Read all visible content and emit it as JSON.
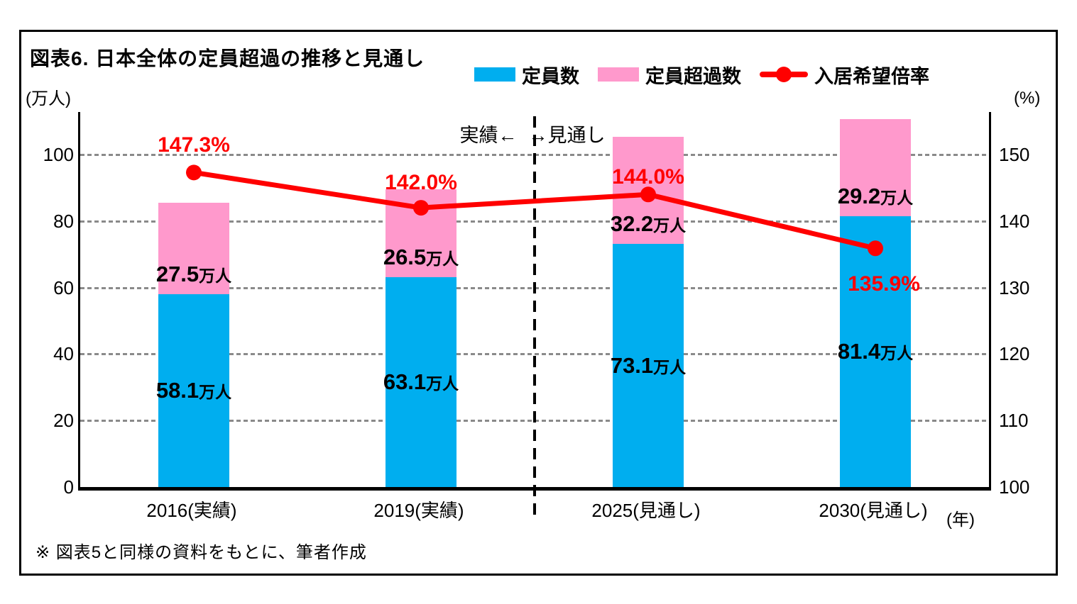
{
  "figure": {
    "title": "図表6. 日本全体の定員超過の推移と見通し",
    "footnote": "※ 図表5と同様の資料をもとに、筆者作成"
  },
  "legend": {
    "items": [
      {
        "label": "定員数",
        "marker": "box",
        "color": "#00AEEF"
      },
      {
        "label": "定員超過数",
        "marker": "box",
        "color": "#FF99CC"
      },
      {
        "label": "入居希望倍率",
        "marker": "line-dot",
        "color": "#FF0000"
      }
    ]
  },
  "axes": {
    "left_unit": "(万人)",
    "right_unit": "(%)",
    "x_unit": "(年)",
    "left_ticks": [
      0,
      20,
      40,
      60,
      80,
      100
    ],
    "right_ticks": [
      100,
      110,
      120,
      130,
      140,
      150
    ],
    "left_range": [
      0,
      112.8
    ],
    "right_range": [
      100,
      156.4
    ],
    "grid_color": "#8a8a8a",
    "grid_style": "dashed"
  },
  "divider": {
    "label_left": "実績←",
    "label_right": "→見通し",
    "position": "between 2019(実績) and 2025(見通し)",
    "style": "black dashed vertical line"
  },
  "chart_data": {
    "type": "bar",
    "subtype": "stacked-bars-with-right-axis-line",
    "title": "図表6. 日本全体の定員超過の推移と見通し",
    "categories": [
      "2016(実績)",
      "2019(実績)",
      "2025(見通し)",
      "2030(見通し)"
    ],
    "xlabel": "(年)",
    "ylabel_left": "(万人)",
    "ylabel_right": "(%)",
    "ylim_left": [
      0,
      112.8
    ],
    "ylim_right": [
      100,
      156.4
    ],
    "legend_position": "top",
    "grid": "horizontal-dashed",
    "series": [
      {
        "name": "定員数",
        "type": "bar",
        "stack": true,
        "axis": "left",
        "color": "#00AEEF",
        "values": [
          58.1,
          63.1,
          73.1,
          81.4
        ],
        "labels": [
          {
            "num": "58.1",
            "unit": "万人"
          },
          {
            "num": "63.1",
            "unit": "万人"
          },
          {
            "num": "73.1",
            "unit": "万人"
          },
          {
            "num": "81.4",
            "unit": "万人"
          }
        ]
      },
      {
        "name": "定員超過数",
        "type": "bar",
        "stack": true,
        "axis": "left",
        "color": "#FF99CC",
        "values": [
          27.5,
          26.5,
          32.2,
          29.2
        ],
        "labels": [
          {
            "num": "27.5",
            "unit": "万人"
          },
          {
            "num": "26.5",
            "unit": "万人"
          },
          {
            "num": "32.2",
            "unit": "万人"
          },
          {
            "num": "29.2",
            "unit": "万人"
          }
        ]
      },
      {
        "name": "入居希望倍率",
        "type": "line",
        "axis": "right",
        "color": "#FF0000",
        "values": [
          147.3,
          142.0,
          144.0,
          135.9
        ],
        "labels": [
          "147.3%",
          "142.0%",
          "144.0%",
          "135.9%"
        ],
        "label_offsets": [
          [
            0,
            -38
          ],
          [
            0,
            -35
          ],
          [
            0,
            -24
          ],
          [
            12,
            51
          ]
        ]
      }
    ]
  }
}
